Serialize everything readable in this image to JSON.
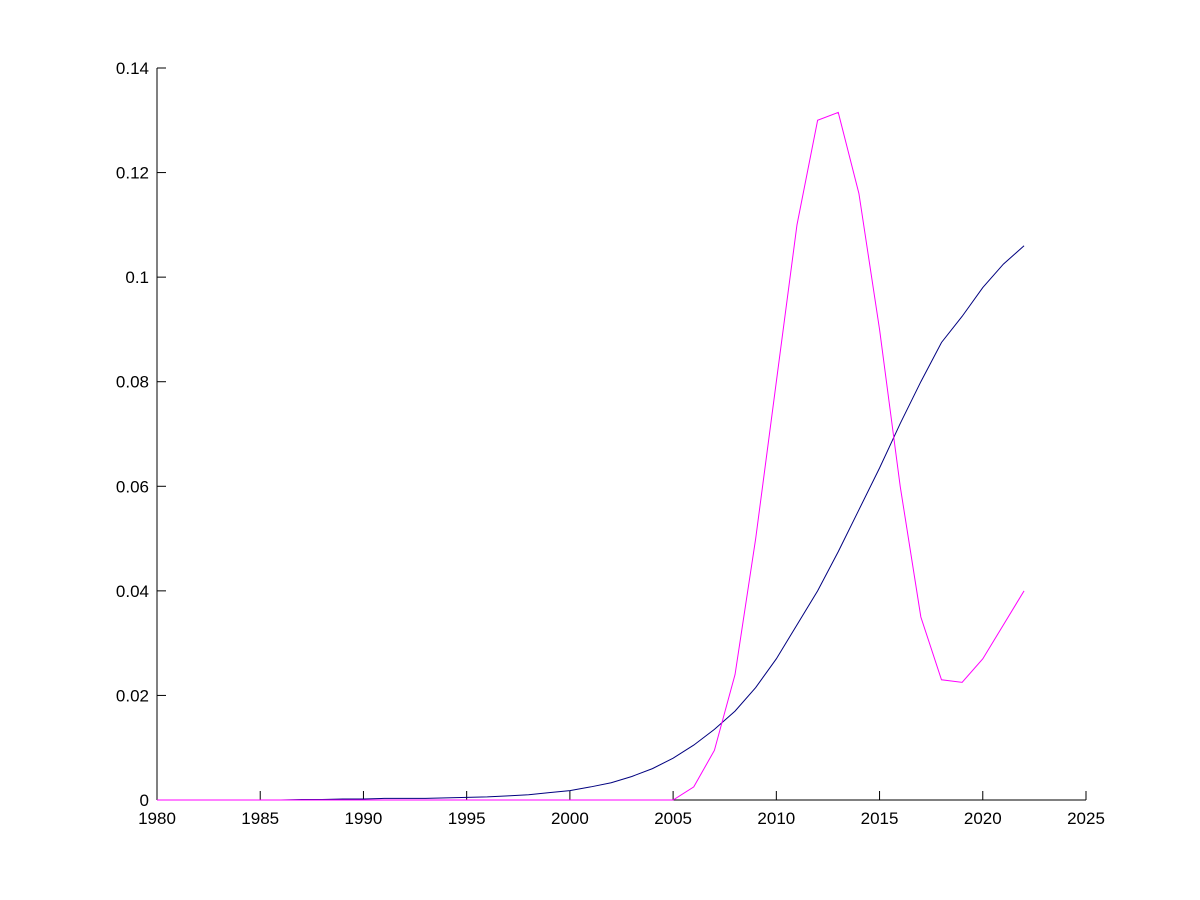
{
  "chart_data": {
    "type": "line",
    "x": [
      1980,
      1981,
      1982,
      1983,
      1984,
      1985,
      1986,
      1987,
      1988,
      1989,
      1990,
      1991,
      1992,
      1993,
      1994,
      1995,
      1996,
      1997,
      1998,
      1999,
      2000,
      2001,
      2002,
      2003,
      2004,
      2005,
      2006,
      2007,
      2008,
      2009,
      2010,
      2011,
      2012,
      2013,
      2014,
      2015,
      2016,
      2017,
      2018,
      2019,
      2020,
      2021,
      2022
    ],
    "series": [
      {
        "color": "#00007f",
        "values": [
          0,
          0,
          0,
          0,
          0,
          0,
          0,
          0.0001,
          0.0001,
          0.0002,
          0.0002,
          0.0003,
          0.0003,
          0.0003,
          0.0004,
          0.0005,
          0.0006,
          0.0008,
          0.001,
          0.0014,
          0.0018,
          0.0025,
          0.0033,
          0.0045,
          0.006,
          0.008,
          0.0105,
          0.0135,
          0.017,
          0.0215,
          0.027,
          0.0335,
          0.04,
          0.0475,
          0.0555,
          0.0635,
          0.072,
          0.08,
          0.0875,
          0.0925,
          0.098,
          0.1025,
          0.106
        ]
      },
      {
        "color": "#ff00ff",
        "values": [
          0,
          0,
          0,
          0,
          0,
          0,
          0,
          0,
          0,
          0,
          0,
          0,
          0,
          0,
          0,
          0,
          0,
          0,
          0,
          0,
          0,
          0,
          0,
          0,
          0,
          0,
          0.0025,
          0.0095,
          0.024,
          0.05,
          0.08,
          0.11,
          0.13,
          0.1315,
          0.116,
          0.09,
          0.06,
          0.035,
          0.023,
          0.0225,
          0.027,
          0.0335,
          0.04
        ]
      }
    ],
    "xlim": [
      1980,
      2025
    ],
    "xticks": [
      1980,
      1985,
      1990,
      1995,
      2000,
      2005,
      2010,
      2015,
      2020,
      2025
    ],
    "ylim": [
      0,
      0.14
    ],
    "yticks": [
      0,
      0.02,
      0.04,
      0.06,
      0.08,
      0.1,
      0.12,
      0.14
    ],
    "grid": false
  }
}
